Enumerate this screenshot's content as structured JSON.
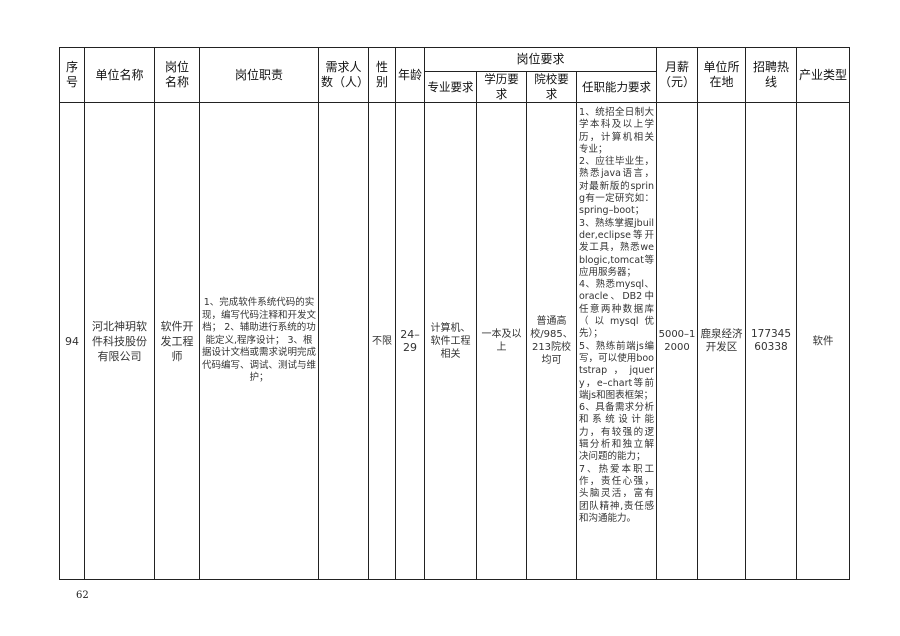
{
  "headers": {
    "index": "序号",
    "company": "单位名称",
    "position": "岗位\n名称",
    "duties": "岗位职责",
    "headcount": "需求人数（人）",
    "gender": "性别",
    "age": "年龄",
    "requirements_group": "岗位要求",
    "major": "专业要求",
    "education": "学历要求",
    "school": "院校要求",
    "ability": "任职能力要求",
    "salary": "月薪（元）",
    "location": "单位所在地",
    "hotline": "招聘热线",
    "industry": "产业类型"
  },
  "rows": [
    {
      "index": "94",
      "company": "河北神玥软件科技股份有限公司",
      "position": "软件开发工程师",
      "duties": "1、完成软件系统代码的实现，编写代码注释和开发文档；\n2、辅助进行系统的功能定义,程序设计；\n3、根据设计文档或需求说明完成代码编写、调试、测试与维护；",
      "headcount": "",
      "gender": "不限",
      "age": "24–29",
      "major": "计算机、软件工程相关",
      "education": "一本及以上",
      "school": "普通高校/985、213院校均可",
      "ability": "1、统招全日制大学本科及以上学历，计算机相关专业；\n2、应往毕业生，熟悉java语言，对最新版的spring有一定研究如：spring–boot；\n3、熟练掌握jbuilder,eclipse等开发工具，熟悉weblogic,tomcat等应用服务器；\n4、熟悉mysql、oracle、DB2中任意两种数据库（以mysql优先）；\n5、熟练前端js编写，可以使用bootstrap，jquery，e–chart等前端js和图表框架；\n6、具备需求分析和系统设计能力，有较强的逻辑分析和独立解决问题的能力；\n7、热爱本职工作，责任心强，头脑灵活，富有团队精神,责任感和沟通能力。",
      "salary": "5000–12000",
      "location": "鹿泉经济开发区",
      "hotline": "17734560338",
      "industry": "软件"
    }
  ],
  "page_number": "62"
}
